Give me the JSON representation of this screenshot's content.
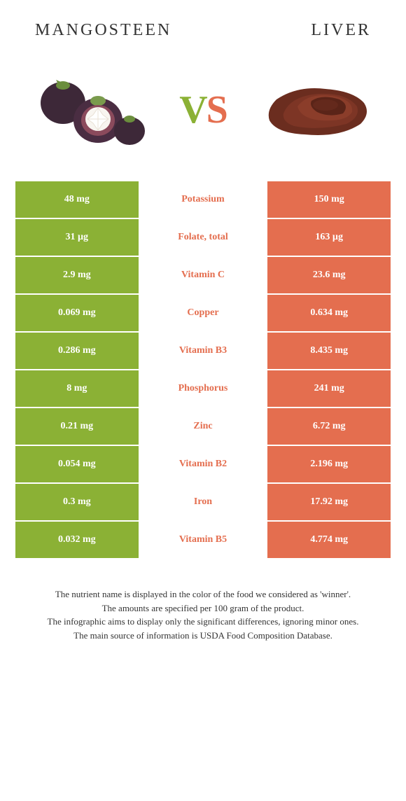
{
  "header": {
    "left": "MANGOSTEEN",
    "right": "LIVER"
  },
  "vs": {
    "v": "V",
    "s": "S"
  },
  "colors": {
    "green": "#8bb135",
    "orange": "#e46e4f",
    "mid_bg": "#ffffff",
    "text_white": "#ffffff",
    "text_dark": "#333333"
  },
  "rows": [
    {
      "left": "48 mg",
      "label": "Potassium",
      "label_color": "#e46e4f",
      "right": "150 mg"
    },
    {
      "left": "31 µg",
      "label": "Folate, total",
      "label_color": "#e46e4f",
      "right": "163 µg"
    },
    {
      "left": "2.9 mg",
      "label": "Vitamin C",
      "label_color": "#e46e4f",
      "right": "23.6 mg"
    },
    {
      "left": "0.069 mg",
      "label": "Copper",
      "label_color": "#e46e4f",
      "right": "0.634 mg"
    },
    {
      "left": "0.286 mg",
      "label": "Vitamin B3",
      "label_color": "#e46e4f",
      "right": "8.435 mg"
    },
    {
      "left": "8 mg",
      "label": "Phosphorus",
      "label_color": "#e46e4f",
      "right": "241 mg"
    },
    {
      "left": "0.21 mg",
      "label": "Zinc",
      "label_color": "#e46e4f",
      "right": "6.72 mg"
    },
    {
      "left": "0.054 mg",
      "label": "Vitamin B2",
      "label_color": "#e46e4f",
      "right": "2.196 mg"
    },
    {
      "left": "0.3 mg",
      "label": "Iron",
      "label_color": "#e46e4f",
      "right": "17.92 mg"
    },
    {
      "left": "0.032 mg",
      "label": "Vitamin B5",
      "label_color": "#e46e4f",
      "right": "4.774 mg"
    }
  ],
  "footnote": {
    "l1": "The nutrient name is displayed in the color of the food we considered as 'winner'.",
    "l2": "The amounts are specified per 100 gram of the product.",
    "l3": "The infographic aims to display only the significant differences, ignoring minor ones.",
    "l4": "The main source of information is USDA Food Composition Database."
  }
}
